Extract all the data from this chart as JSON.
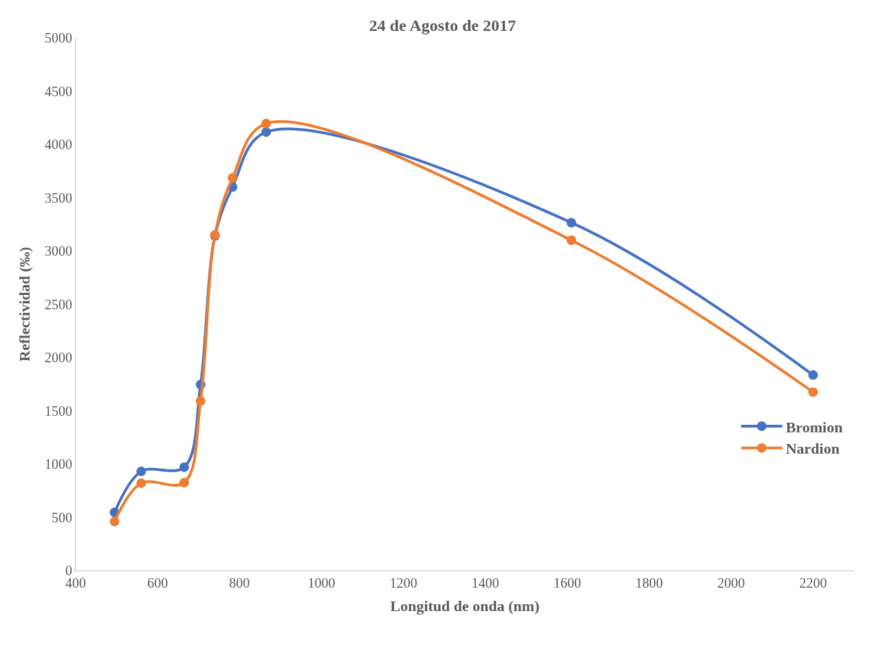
{
  "chart_data": {
    "type": "line",
    "title": "24 de Agosto de 2017",
    "xlabel": "Longitud de onda (nm)",
    "ylabel": "Reflectividad (‰)",
    "x": [
      495,
      560,
      665,
      705,
      740,
      783,
      865,
      1610,
      2200
    ],
    "series": [
      {
        "name": "Bromion",
        "color": "#4472c4",
        "values": [
          545,
          930,
          970,
          1745,
          3140,
          3600,
          4115,
          3265,
          1835
        ]
      },
      {
        "name": "Nardion",
        "color": "#ed7d31",
        "values": [
          460,
          820,
          825,
          1590,
          3150,
          3685,
          4195,
          3100,
          1675
        ]
      }
    ],
    "xlim": [
      400,
      2300
    ],
    "xticks": [
      400,
      600,
      800,
      1000,
      1200,
      1400,
      1600,
      1800,
      2000,
      2200
    ],
    "ylim": [
      0,
      5000
    ],
    "yticks": [
      0,
      500,
      1000,
      1500,
      2000,
      2500,
      3000,
      3500,
      4000,
      4500,
      5000
    ],
    "legend": "right",
    "marker": "circle",
    "line_style": "solid"
  }
}
